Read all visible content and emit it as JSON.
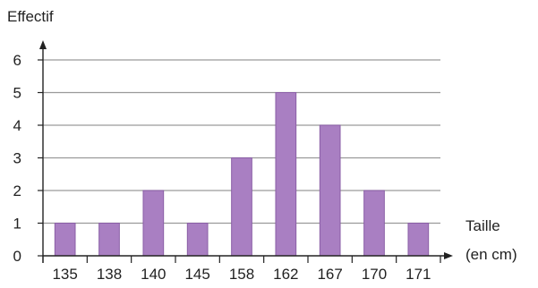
{
  "chart_data": {
    "type": "bar",
    "categories": [
      "135",
      "138",
      "140",
      "145",
      "158",
      "162",
      "167",
      "170",
      "171"
    ],
    "values": [
      1,
      1,
      2,
      1,
      3,
      5,
      4,
      2,
      1
    ],
    "title": "",
    "ylabel": "Effectif",
    "xlabel_line1": "Taille",
    "xlabel_line2": "(en cm)",
    "ylim": [
      0,
      6
    ],
    "yticks": [
      "0",
      "1",
      "2",
      "3",
      "4",
      "5",
      "6"
    ],
    "grid": true,
    "bar_color": "#a97fc2",
    "bar_edge_color": "#8a5fa6",
    "grid_color": "#9a9a9a",
    "axis_color": "#222222"
  }
}
